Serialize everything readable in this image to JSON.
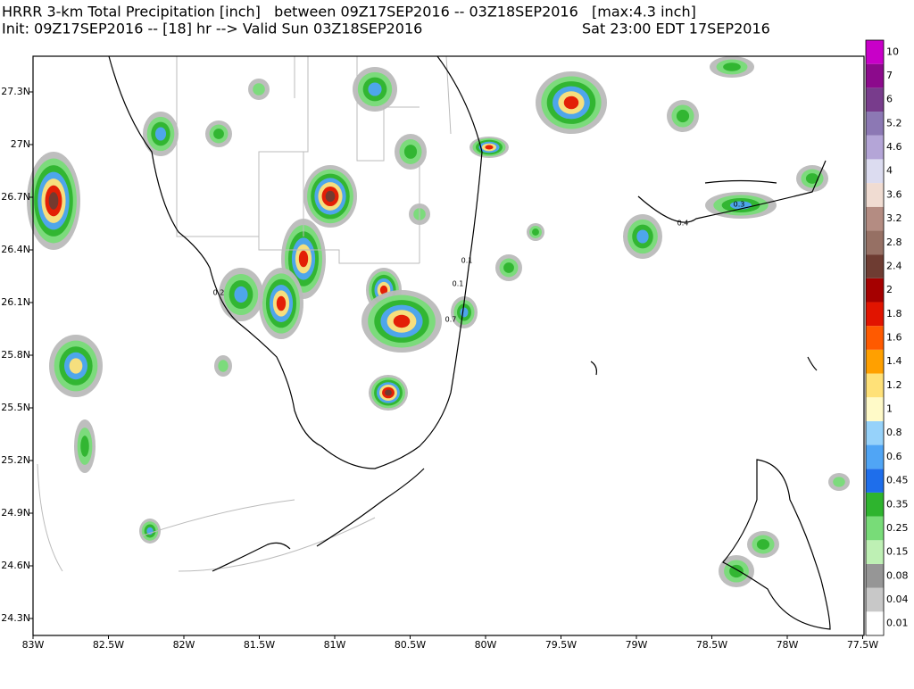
{
  "header": {
    "line1": "HRRR 3-km Total Precipitation [inch]   between 09Z17SEP2016 -- 03Z18SEP2016   [max:4.3 inch]",
    "line2_left": "Init: 09Z17SEP2016 -- [18] hr --> Valid Sun 03Z18SEP2016",
    "line2_right": "Sat 23:00 EDT 17SEP2016"
  },
  "map": {
    "lon_labels": [
      "83W",
      "82.5W",
      "82W",
      "81.5W",
      "81W",
      "80.5W",
      "80W",
      "79.5W",
      "79W",
      "78.5W",
      "78W",
      "77.5W"
    ],
    "lat_labels": [
      "27.3N",
      "27N",
      "26.7N",
      "26.4N",
      "26.1N",
      "25.8N",
      "25.5N",
      "25.2N",
      "24.9N",
      "24.6N",
      "24.3N"
    ],
    "contour_labels": [
      "0.2",
      "0.1",
      "0.1",
      "0.7",
      "0.4",
      "0.3"
    ]
  },
  "colorbar": {
    "labels": [
      "0.01",
      "0.04",
      "0.08",
      "0.15",
      "0.25",
      "0.35",
      "0.45",
      "0.6",
      "0.8",
      "1",
      "1.2",
      "1.4",
      "1.6",
      "1.8",
      "2",
      "2.4",
      "2.8",
      "3.2",
      "3.6",
      "4",
      "4.6",
      "5.2",
      "6",
      "7",
      "10"
    ],
    "colors": [
      "#ffffff",
      "#c8c8c8",
      "#969696",
      "#bef0b4",
      "#78dc78",
      "#2eb42e",
      "#1e6eeb",
      "#50a5f5",
      "#96d2fa",
      "#fffac8",
      "#ffe178",
      "#ffa000",
      "#ff5a00",
      "#e11400",
      "#a50000",
      "#6e3c32",
      "#967064",
      "#b48c82",
      "#f0dcd2",
      "#dcdcf0",
      "#b4a5d7",
      "#8c78b4",
      "#783c8c",
      "#8c0a8c",
      "#c800c8"
    ]
  }
}
